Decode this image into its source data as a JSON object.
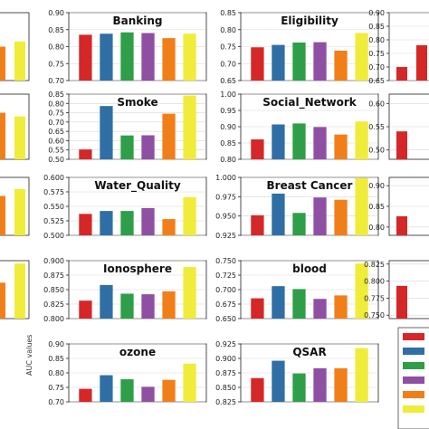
{
  "colors": [
    "#d62728",
    "#2f6fa6",
    "#2e9e48",
    "#8f4fa3",
    "#f07f1a",
    "#f0ec3a"
  ],
  "axis_label": "AUC values",
  "chart_data": [
    {
      "type": "bar",
      "title": "Banking",
      "ylim": [
        0.7,
        0.9
      ],
      "ticks": [
        "0.70",
        "0.75",
        "0.80",
        "0.85",
        "0.90"
      ],
      "values": [
        0.835,
        0.838,
        0.842,
        0.84,
        0.825,
        0.838
      ]
    },
    {
      "type": "bar",
      "title": "Eligibility",
      "ylim": [
        0.65,
        0.85
      ],
      "ticks": [
        "0.65",
        "0.70",
        "0.75",
        "0.80",
        "0.85"
      ],
      "values": [
        0.748,
        0.755,
        0.762,
        0.763,
        0.738,
        0.79
      ]
    },
    {
      "type": "bar",
      "title": "Smoke",
      "ylim": [
        0.5,
        0.85
      ],
      "ticks": [
        "0.50",
        "0.55",
        "0.60",
        "0.65",
        "0.70",
        "0.75",
        "0.80",
        "0.85"
      ],
      "values": [
        0.553,
        0.786,
        0.628,
        0.629,
        0.745,
        0.842
      ]
    },
    {
      "type": "bar",
      "title": "Social_Network",
      "ylim": [
        0.8,
        1.0
      ],
      "ticks": [
        "0.80",
        "0.85",
        "0.90",
        "0.95",
        "1.00"
      ],
      "values": [
        0.861,
        0.907,
        0.91,
        0.899,
        0.876,
        0.916
      ]
    },
    {
      "type": "bar",
      "title": "Water_Quality",
      "ylim": [
        0.5,
        0.6
      ],
      "ticks": [
        "0.500",
        "0.525",
        "0.550",
        "0.575",
        "0.600"
      ],
      "values": [
        0.537,
        0.542,
        0.542,
        0.547,
        0.528,
        0.566
      ]
    },
    {
      "type": "bar",
      "title": "Breast Cancer",
      "ylim": [
        0.925,
        1.0
      ],
      "ticks": [
        "0.925",
        "0.950",
        "0.975",
        "1.000"
      ],
      "values": [
        0.951,
        0.979,
        0.954,
        0.974,
        0.971,
        0.999
      ]
    },
    {
      "type": "bar",
      "title": "Ionosphere",
      "ylim": [
        0.8,
        0.9
      ],
      "ticks": [
        "0.800",
        "0.825",
        "0.850",
        "0.875",
        "0.900"
      ],
      "values": [
        0.831,
        0.858,
        0.843,
        0.842,
        0.847,
        0.889
      ]
    },
    {
      "type": "bar",
      "title": "blood",
      "ylim": [
        0.65,
        0.75
      ],
      "ticks": [
        "0.650",
        "0.675",
        "0.700",
        "0.725",
        "0.750"
      ],
      "values": [
        0.685,
        0.706,
        0.701,
        0.684,
        0.69,
        0.745
      ]
    },
    {
      "type": "bar",
      "title": "ozone",
      "ylim": [
        0.7,
        0.9
      ],
      "ticks": [
        "0.70",
        "0.75",
        "0.80",
        "0.85",
        "0.90"
      ],
      "values": [
        0.745,
        0.792,
        0.778,
        0.752,
        0.776,
        0.832
      ]
    },
    {
      "type": "bar",
      "title": "QSAR",
      "ylim": [
        0.825,
        0.925
      ],
      "ticks": [
        "0.825",
        "0.850",
        "0.875",
        "0.900",
        "0.925"
      ],
      "values": [
        0.866,
        0.896,
        0.874,
        0.883,
        0.883,
        0.918
      ]
    }
  ],
  "partial_panels": [
    {
      "ticks": [],
      "values": [
        0.8,
        0.815
      ],
      "ylim": [
        0.7,
        0.9
      ]
    },
    {
      "ticks": [
        "0.90",
        "0.85",
        "0.80",
        "0.75",
        "0.70",
        "0.65"
      ],
      "values": [
        0.7,
        0.78
      ],
      "ylim": [
        0.65,
        0.9
      ]
    },
    {
      "ticks": [],
      "values": [
        0.75,
        0.73
      ],
      "ylim": [
        0.5,
        0.85
      ]
    },
    {
      "ticks": [
        "0.60",
        "0.55",
        "0.50"
      ],
      "values": [
        0.54
      ],
      "ylim": [
        0.48,
        0.62
      ]
    },
    {
      "ticks": [],
      "values": [
        0.568,
        0.58
      ],
      "ylim": [
        0.5,
        0.6
      ]
    },
    {
      "ticks": [
        "0.90",
        "0.85",
        "0.80"
      ],
      "values": [
        0.826
      ],
      "ylim": [
        0.78,
        0.92
      ]
    },
    {
      "ticks": [],
      "values": [
        0.862,
        0.895
      ],
      "ylim": [
        0.8,
        0.9
      ]
    },
    {
      "ticks": [
        "0.825",
        "0.800",
        "0.775",
        "0.750"
      ],
      "values": [
        0.793
      ],
      "ylim": [
        0.745,
        0.83
      ]
    }
  ]
}
